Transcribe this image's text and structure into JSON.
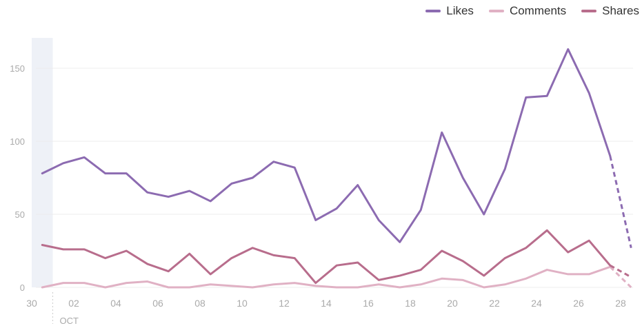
{
  "chart_data": {
    "type": "line",
    "x_ticks": [
      "30",
      "02",
      "04",
      "06",
      "08",
      "10",
      "12",
      "14",
      "16",
      "18",
      "20",
      "22",
      "24",
      "26",
      "28"
    ],
    "month_marker": "OCT",
    "y_ticks": [
      "0",
      "50",
      "100",
      "150"
    ],
    "ylim": [
      0,
      170
    ],
    "grid": "horizontal",
    "legend_position": "top-right",
    "x_days": [
      30.5,
      31.5,
      32.5,
      33.5,
      34.5,
      35.5,
      36.5,
      37.5,
      38.5,
      39.5,
      40.5,
      41.5,
      42.5,
      43.5,
      44.5,
      45.5,
      46.5,
      47.5,
      48.5,
      49.5,
      50.5,
      51.5,
      52.5,
      53.5,
      54.5,
      55.5,
      56.5,
      57.5,
      58.5
    ],
    "projected_from_index": 27,
    "series": [
      {
        "name": "Likes",
        "color": "#8c6bb1",
        "values": [
          78,
          85,
          89,
          78,
          78,
          65,
          62,
          66,
          59,
          71,
          75,
          86,
          82,
          46,
          54,
          70,
          46,
          31,
          53,
          106,
          75,
          50,
          81,
          130,
          131,
          163,
          133,
          90,
          27
        ]
      },
      {
        "name": "Comments",
        "color": "#e0b1c4",
        "values": [
          0,
          3,
          3,
          0,
          3,
          4,
          0,
          0,
          2,
          1,
          0,
          2,
          3,
          1,
          0,
          0,
          2,
          0,
          2,
          6,
          5,
          0,
          2,
          6,
          12,
          9,
          9,
          14,
          0
        ]
      },
      {
        "name": "Shares",
        "color": "#b86d8c",
        "values": [
          29,
          26,
          26,
          20,
          25,
          16,
          11,
          23,
          9,
          20,
          27,
          22,
          20,
          3,
          15,
          17,
          5,
          8,
          12,
          25,
          18,
          8,
          20,
          27,
          39,
          24,
          32,
          15,
          7
        ]
      }
    ]
  }
}
